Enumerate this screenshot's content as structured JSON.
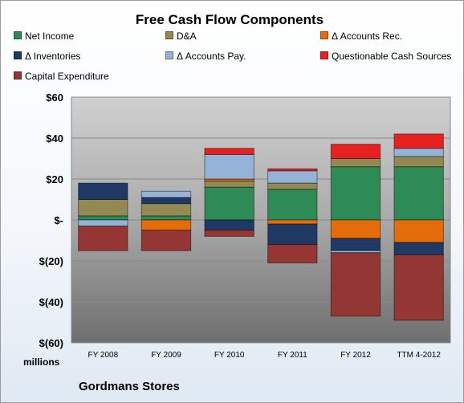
{
  "chart_data": {
    "type": "bar",
    "stacked": true,
    "title": "Free Cash Flow Components",
    "ylabel": "millions",
    "categories": [
      "FY 2008",
      "FY 2009",
      "FY 2010",
      "FY 2011",
      "FY 2012",
      "TTM 4-2012"
    ],
    "ylim": [
      -60,
      60
    ],
    "ytick_values": [
      60,
      40,
      20,
      0,
      -20,
      -40,
      -60
    ],
    "ytick_labels": [
      "$60",
      "$40",
      "$20",
      "$-",
      "$(20)",
      "$(40)",
      "$(60)"
    ],
    "grid": true,
    "legend_position": "top",
    "series": [
      {
        "name": "Net Income",
        "color": "#2e8b57",
        "values": [
          2,
          2,
          16,
          15,
          26,
          26
        ]
      },
      {
        "name": "D&A",
        "color": "#938953",
        "values": [
          8,
          6,
          3,
          3,
          4,
          5
        ]
      },
      {
        "name": "Δ Accounts Rec.",
        "color": "#e46c0a",
        "values": [
          0,
          -5,
          1,
          -2,
          -9,
          -11
        ]
      },
      {
        "name": "Δ Inventories",
        "color": "#1f3864",
        "values": [
          8,
          3,
          -5,
          -10,
          -6,
          -6
        ]
      },
      {
        "name": "Δ Accounts Pay.",
        "color": "#95b3d7",
        "values": [
          -3,
          3,
          12,
          6,
          -1,
          4
        ]
      },
      {
        "name": "Questionable Cash Sources",
        "color": "#e82020",
        "values": [
          0,
          0,
          3,
          1,
          7,
          7
        ]
      },
      {
        "name": "Capital Expenditure",
        "color": "#943634",
        "values": [
          -12,
          -10,
          -3,
          -9,
          -31,
          -32
        ]
      }
    ]
  },
  "company_name": "Gordmans Stores"
}
